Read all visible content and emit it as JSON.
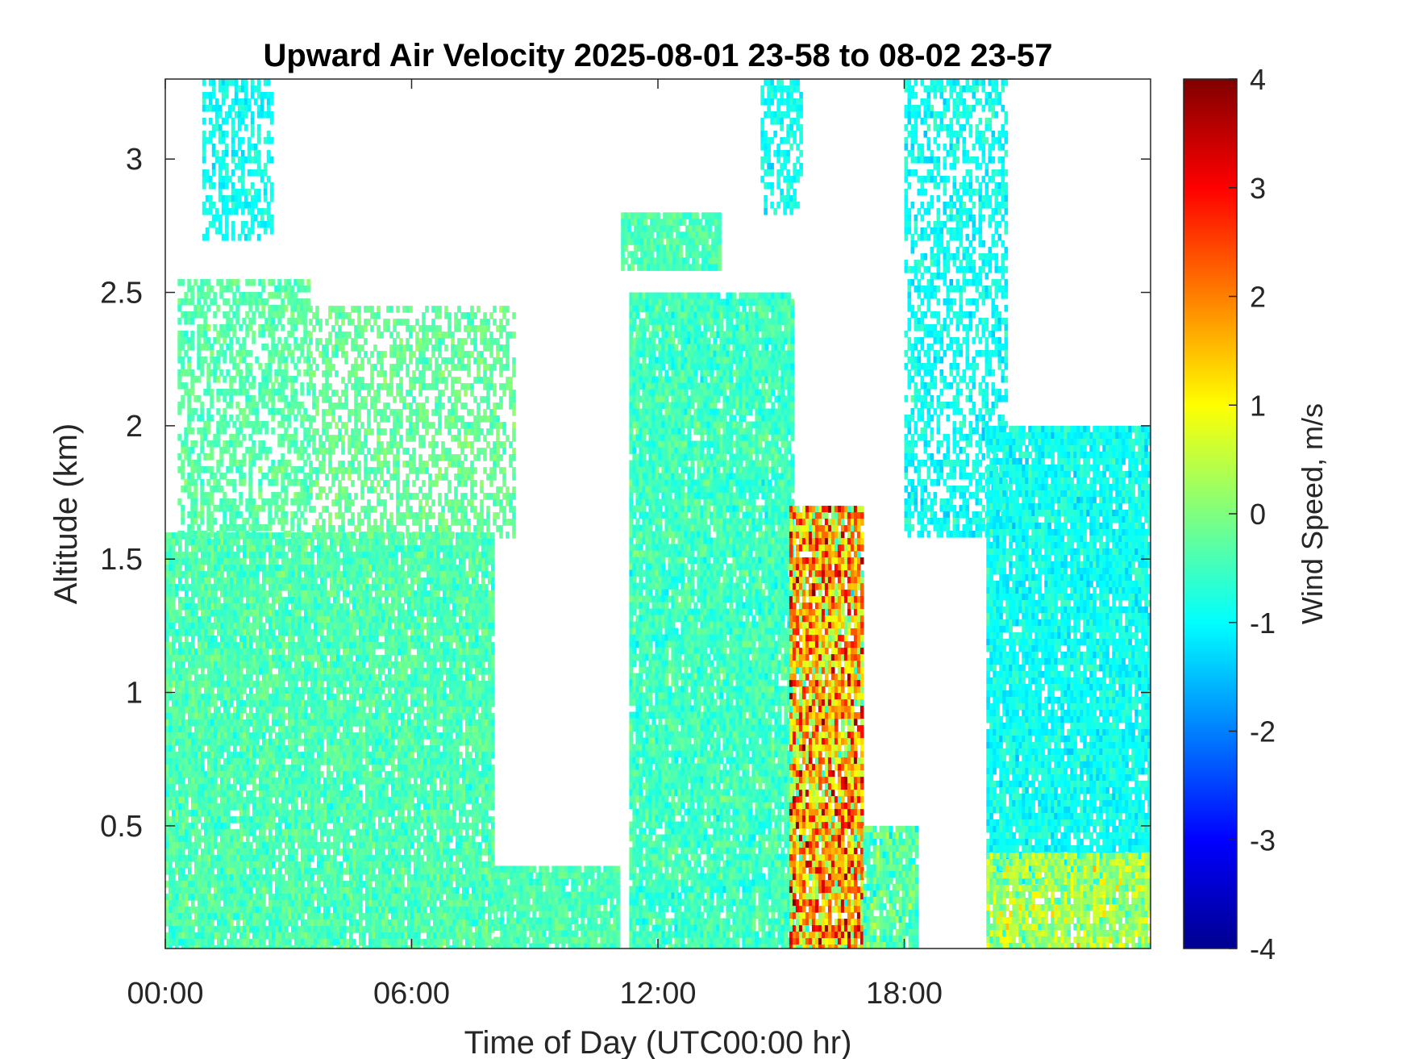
{
  "chart_data": {
    "type": "heatmap",
    "title": "Upward Air Velocity 2025-08-01 23-58 to 08-02 23-57",
    "xlabel": "Time of Day (UTC00:00 hr)",
    "ylabel": "Altitude (km)",
    "x_ticks": [
      {
        "value": 0,
        "label": "00:00"
      },
      {
        "value": 6,
        "label": "06:00"
      },
      {
        "value": 12,
        "label": "12:00"
      },
      {
        "value": 18,
        "label": "18:00"
      }
    ],
    "y_ticks": [
      {
        "value": 0.5,
        "label": "0.5"
      },
      {
        "value": 1,
        "label": "1"
      },
      {
        "value": 1.5,
        "label": "1.5"
      },
      {
        "value": 2,
        "label": "2"
      },
      {
        "value": 2.5,
        "label": "2.5"
      },
      {
        "value": 3,
        "label": "3"
      }
    ],
    "xlim": [
      0,
      24
    ],
    "ylim": [
      0.04,
      3.3
    ],
    "colorbar": {
      "label": "Wind Speed, m/s",
      "colormap": "jet",
      "range": [
        -4,
        4
      ],
      "ticks": [
        {
          "value": 4,
          "label": "4"
        },
        {
          "value": 3,
          "label": "3"
        },
        {
          "value": 2,
          "label": "2"
        },
        {
          "value": 1,
          "label": "1"
        },
        {
          "value": 0,
          "label": "0"
        },
        {
          "value": -1,
          "label": "-1"
        },
        {
          "value": -2,
          "label": "-2"
        },
        {
          "value": -3,
          "label": "-3"
        },
        {
          "value": -4,
          "label": "-4"
        }
      ]
    },
    "regions": [
      {
        "t": [
          0.0,
          8.0
        ],
        "alt": [
          0.04,
          1.6
        ],
        "mean": -0.4,
        "spread": 0.35
      },
      {
        "t": [
          0.3,
          3.5
        ],
        "alt": [
          1.6,
          2.55
        ],
        "mean": -0.3,
        "spread": 0.3,
        "sparse": true
      },
      {
        "t": [
          3.5,
          8.5
        ],
        "alt": [
          1.6,
          2.45
        ],
        "mean": -0.2,
        "spread": 0.3,
        "sparse": true
      },
      {
        "t": [
          0.9,
          2.6
        ],
        "alt": [
          2.7,
          3.3
        ],
        "mean": -0.9,
        "spread": 0.3,
        "sparse": true
      },
      {
        "t": [
          8.0,
          11.0
        ],
        "alt": [
          0.04,
          0.35
        ],
        "mean": -0.4,
        "spread": 0.3
      },
      {
        "t": [
          11.3,
          15.3
        ],
        "alt": [
          0.04,
          2.5
        ],
        "mean": -0.5,
        "spread": 0.4
      },
      {
        "t": [
          11.1,
          13.5
        ],
        "alt": [
          2.6,
          2.8
        ],
        "mean": -0.4,
        "spread": 0.3
      },
      {
        "t": [
          14.5,
          15.5
        ],
        "alt": [
          2.8,
          3.3
        ],
        "mean": -0.9,
        "spread": 0.3,
        "sparse": true
      },
      {
        "t": [
          15.2,
          17.0
        ],
        "alt": [
          0.04,
          1.7
        ],
        "mean": 1.6,
        "spread": 1.6
      },
      {
        "t": [
          17.0,
          18.3
        ],
        "alt": [
          0.04,
          0.5
        ],
        "mean": -0.3,
        "spread": 0.6
      },
      {
        "t": [
          18.0,
          20.5
        ],
        "alt": [
          1.6,
          3.3
        ],
        "mean": -0.9,
        "spread": 0.35,
        "sparse": true
      },
      {
        "t": [
          20.0,
          24.0
        ],
        "alt": [
          0.3,
          2.0
        ],
        "mean": -0.9,
        "spread": 0.35
      },
      {
        "t": [
          20.0,
          24.0
        ],
        "alt": [
          0.04,
          0.4
        ],
        "mean": 0.3,
        "spread": 0.7
      }
    ]
  }
}
